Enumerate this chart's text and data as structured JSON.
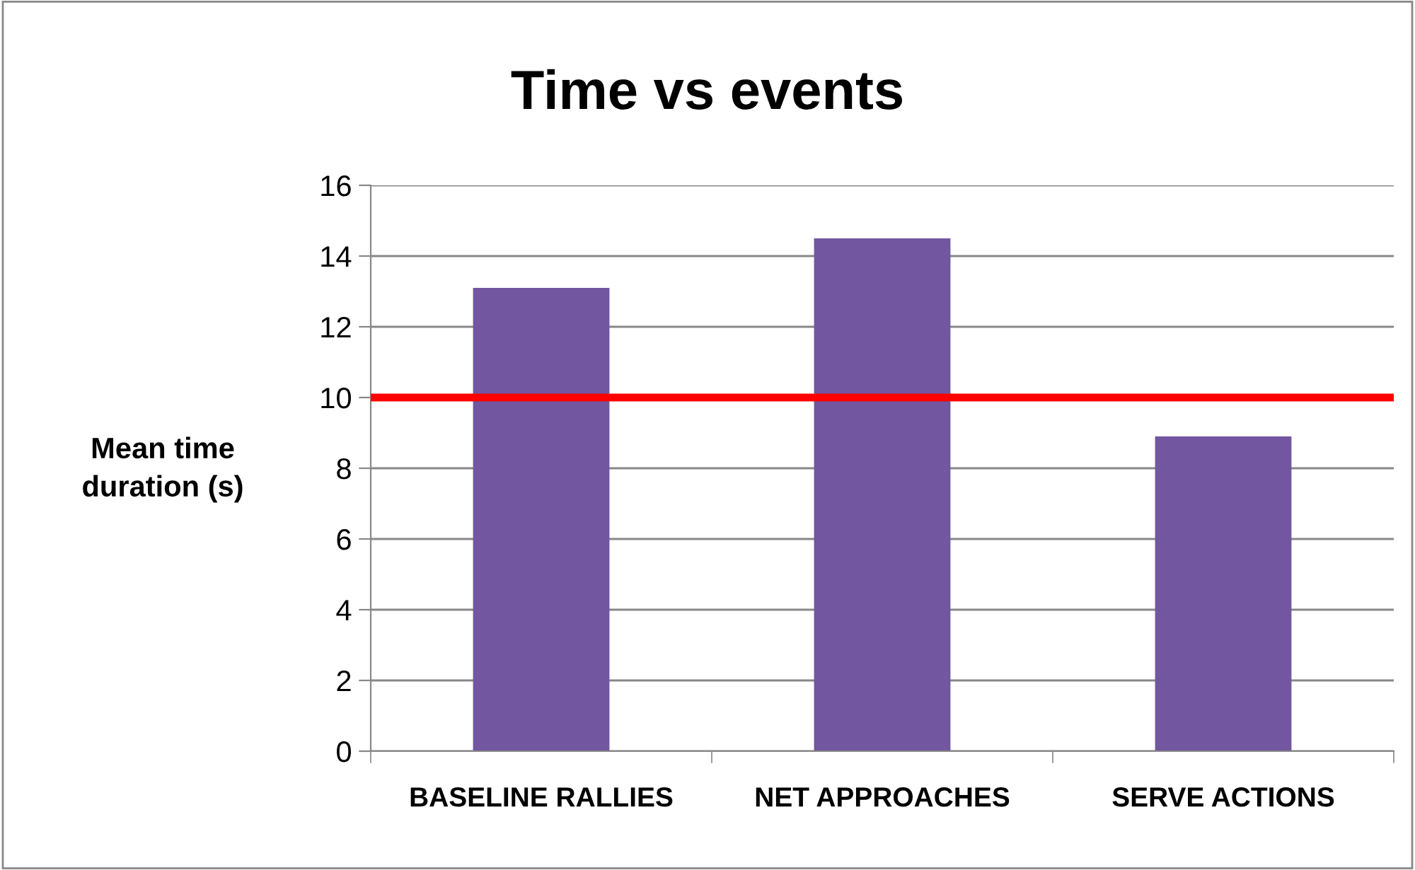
{
  "chart_data": {
    "type": "bar",
    "title": "Time vs events",
    "ylabel": "Mean time\nduration (s)",
    "categories": [
      "BASELINE RALLIES",
      "NET APPROACHES",
      "SERVE ACTIONS"
    ],
    "values": [
      13.1,
      14.5,
      8.9
    ],
    "color": "#7256a0",
    "ylim": [
      0,
      16
    ],
    "yticks": [
      0,
      2,
      4,
      6,
      8,
      10,
      12,
      14,
      16
    ],
    "grid": "y",
    "ref_lines": [
      {
        "axis": "y",
        "value": 10,
        "color": "#ff0000"
      }
    ]
  }
}
